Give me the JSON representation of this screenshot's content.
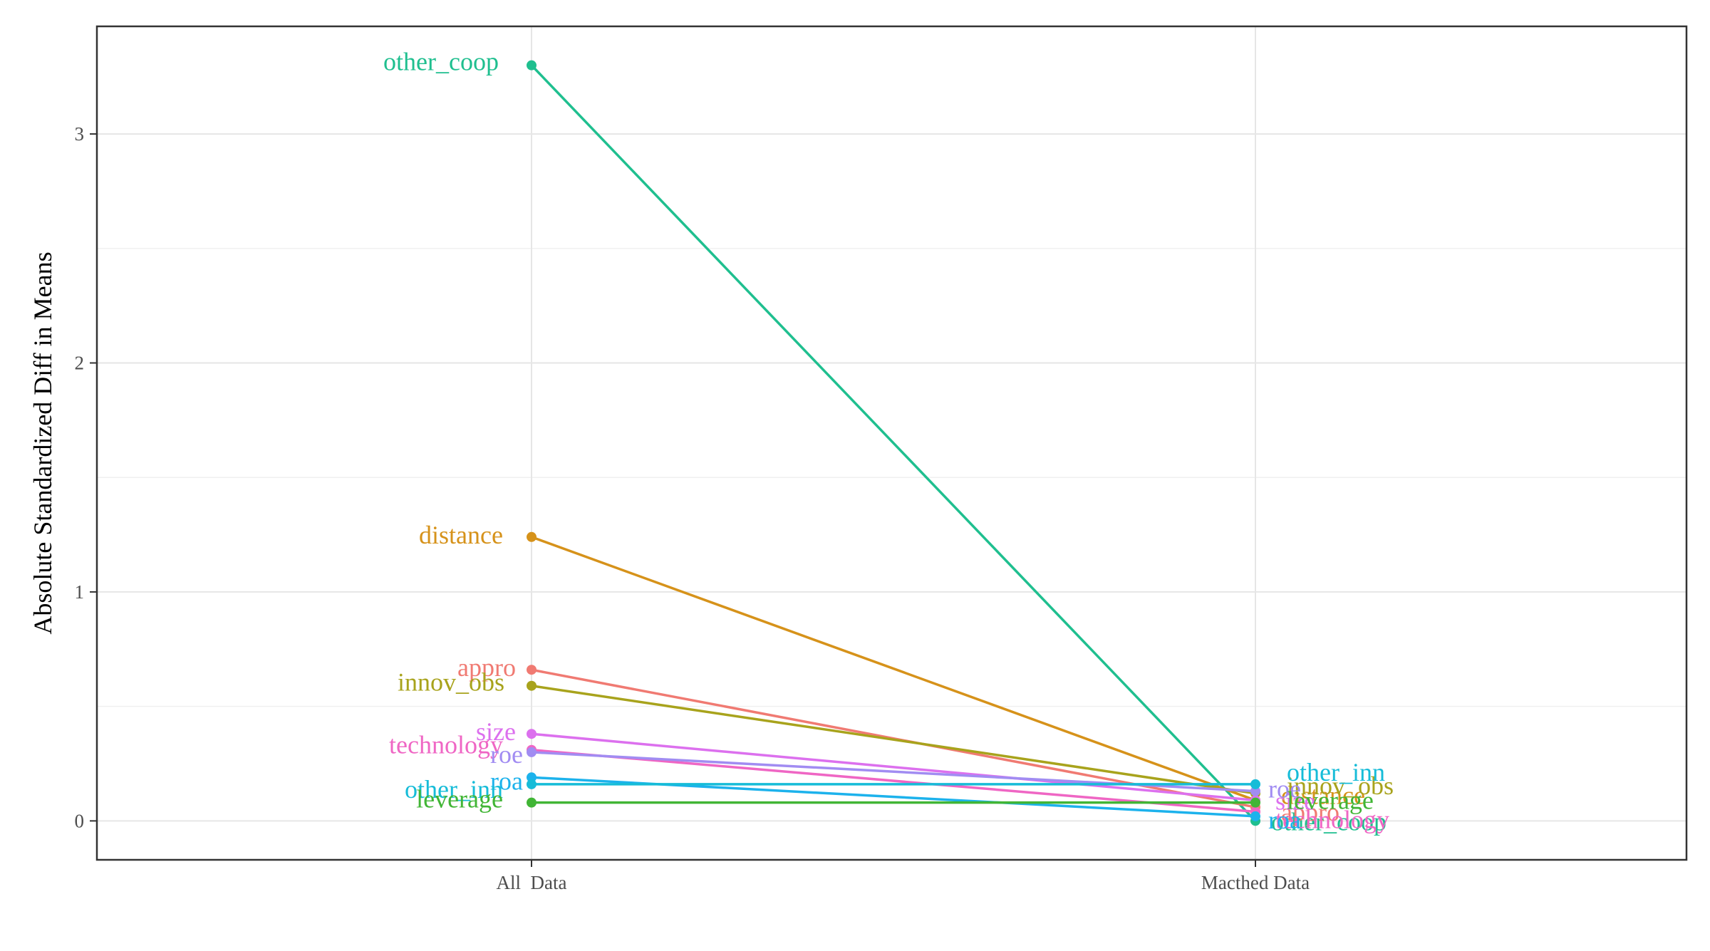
{
  "chart_data": {
    "type": "line",
    "title": "",
    "xlabel": "",
    "ylabel": "Absolute Standardized Diff in Means",
    "categories": [
      "All  Data",
      "Macthed Data"
    ],
    "ylim": [
      -0.17,
      3.47
    ],
    "yticks": [
      0,
      1,
      2,
      3
    ],
    "grid": true,
    "legend": "none",
    "series": [
      {
        "name": "other_coop",
        "color": "#1fbf8f",
        "values": [
          3.3,
          0.0
        ]
      },
      {
        "name": "distance",
        "color": "#d6921a",
        "values": [
          1.24,
          0.09
        ]
      },
      {
        "name": "appro",
        "color": "#f07a72",
        "values": [
          0.66,
          0.06
        ]
      },
      {
        "name": "innov_obs",
        "color": "#a8a31c",
        "values": [
          0.59,
          0.12
        ]
      },
      {
        "name": "size",
        "color": "#dc70ee",
        "values": [
          0.38,
          0.09
        ]
      },
      {
        "name": "technology",
        "color": "#ef66c4",
        "values": [
          0.31,
          0.04
        ]
      },
      {
        "name": "roe",
        "color": "#a18cf2",
        "values": [
          0.3,
          0.13
        ]
      },
      {
        "name": "roa",
        "color": "#1cb2ec",
        "values": [
          0.19,
          0.02
        ]
      },
      {
        "name": "other_inn",
        "color": "#16bcd8",
        "values": [
          0.16,
          0.16
        ]
      },
      {
        "name": "leverage",
        "color": "#41b535",
        "values": [
          0.08,
          0.08
        ]
      }
    ]
  }
}
